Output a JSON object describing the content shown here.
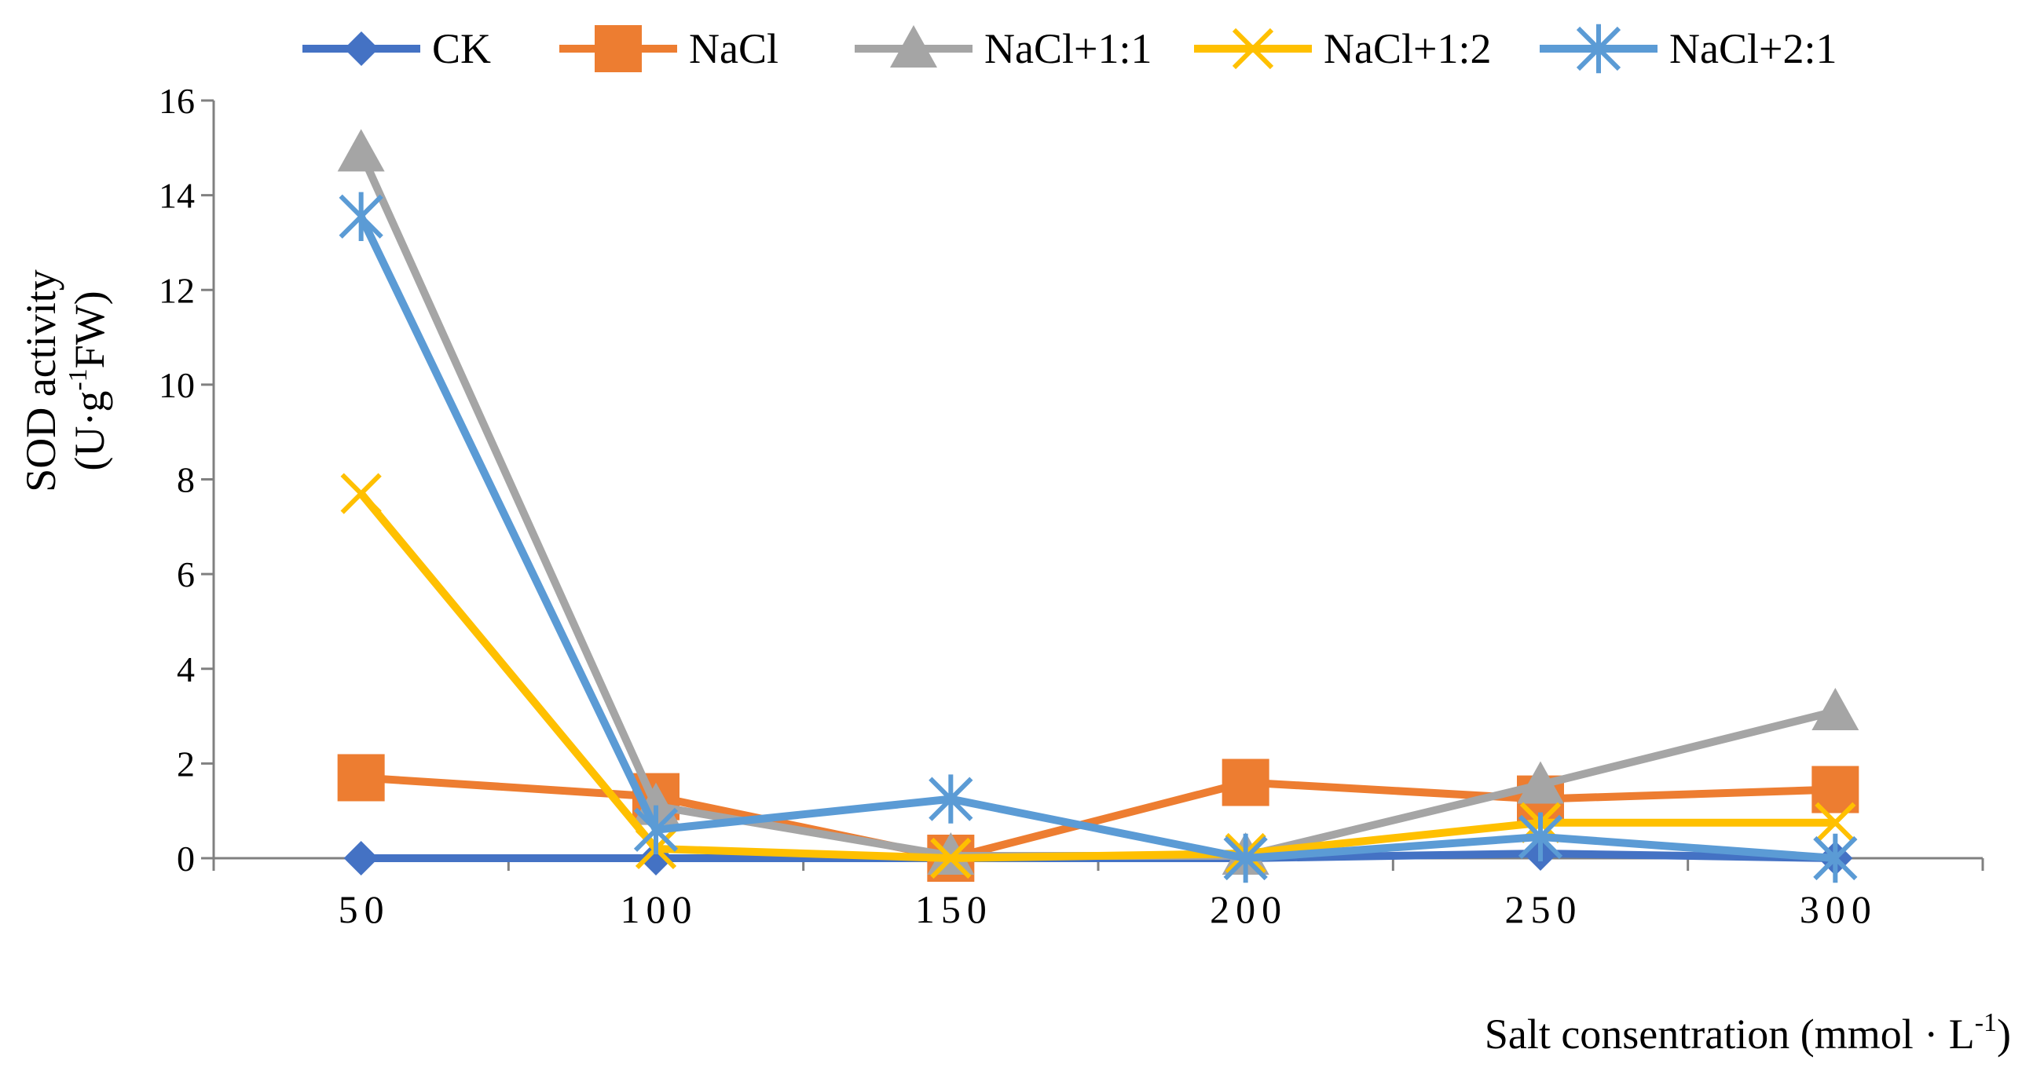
{
  "chart_data": {
    "type": "line",
    "title": "",
    "x": [
      50,
      100,
      150,
      200,
      250,
      300
    ],
    "categories": [
      "50",
      "100",
      "150",
      "200",
      "250",
      "300"
    ],
    "xlabel": "Salt consentration (mmol · L",
    "xlabel_sup": "-1",
    "xlabel_tail": ")",
    "ylabel_line1": "SOD activity",
    "ylabel_line2_a": "(U·g",
    "ylabel_line2_sup": "-1",
    "ylabel_line2_b": "FW)",
    "ylim": [
      0,
      16
    ],
    "yticks": [
      "0",
      "2",
      "4",
      "6",
      "8",
      "10",
      "12",
      "14",
      "16"
    ],
    "grid": false,
    "legend_position": "top",
    "series": [
      {
        "name": "CK",
        "color": "#4472C4",
        "marker": "diamond",
        "values": [
          0.0,
          0.0,
          0.0,
          0.0,
          0.1,
          0.0
        ]
      },
      {
        "name": "NaCl",
        "color": "#ED7D31",
        "marker": "square",
        "values": [
          1.7,
          1.3,
          0.0,
          1.6,
          1.25,
          1.45
        ]
      },
      {
        "name": "NaCl+1:1",
        "color": "#A5A5A5",
        "marker": "triangle",
        "values": [
          14.9,
          1.1,
          0.05,
          0.05,
          1.55,
          3.1
        ]
      },
      {
        "name": "NaCl+1:2",
        "color": "#FFC000",
        "marker": "x",
        "values": [
          7.7,
          0.2,
          0.0,
          0.1,
          0.75,
          0.75
        ]
      },
      {
        "name": "NaCl+2:1",
        "color": "#5B9BD5",
        "marker": "star",
        "values": [
          13.55,
          0.6,
          1.25,
          0.0,
          0.45,
          0.0
        ]
      }
    ]
  }
}
